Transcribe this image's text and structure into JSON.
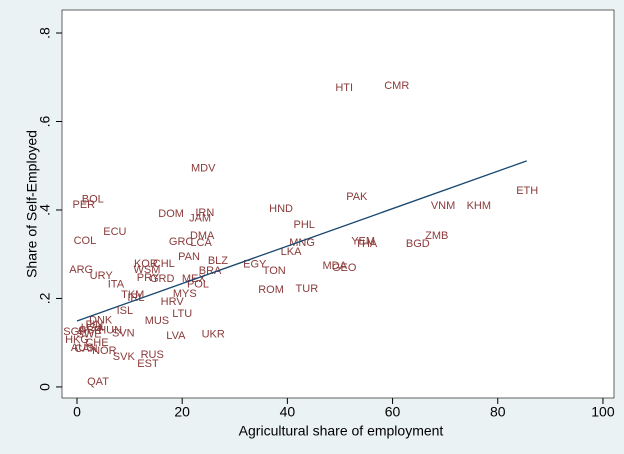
{
  "chart_data": {
    "type": "scatter",
    "xlabel": "Agricultural share of employment",
    "ylabel": "Share of Self-Employed",
    "xlim": [
      -2.85,
      102.1
    ],
    "ylim": [
      -0.025,
      0.852
    ],
    "xticks": [
      0,
      20,
      40,
      60,
      80,
      100
    ],
    "yticks": [
      0,
      {
        "value": 0.2,
        "label": ".2"
      },
      {
        "value": 0.4,
        "label": ".4"
      },
      {
        "value": 0.6,
        "label": ".6"
      },
      {
        "value": 0.8,
        "label": ".8"
      }
    ],
    "grid": false,
    "color": "#8b3a3a",
    "labels": [
      "HTI",
      "CMR",
      "MDV",
      "PAK",
      "ETH",
      "VNM",
      "KHM",
      "BOL",
      "PER",
      "HND",
      "DOM",
      "IRN",
      "JAM",
      "PHL",
      "ECU",
      "ZMB",
      "DMA",
      "COL",
      "GRC",
      "LCA",
      "YEM",
      "THA",
      "BGD",
      "MNG",
      "LKA",
      "PAN",
      "BLZ",
      "EGY",
      "KOR",
      "CHL",
      "WSM",
      "BRA",
      "TON",
      "MDA",
      "GEO",
      "ARG",
      "URY",
      "PRY",
      "GRD",
      "MEX",
      "POL",
      "ITA",
      "ROM",
      "TUR",
      "MYS",
      "TKM",
      "IRL",
      "HRV",
      "LTU",
      "ISL",
      "MUS",
      "LVA",
      "UKR",
      "RUS",
      "EST",
      "SVK",
      "QAT",
      "SGP",
      "GBR",
      "HKG",
      "AUS",
      "NOR",
      "FIN",
      "DNK",
      "SWE",
      "CHE",
      "HUN",
      "SVN",
      "CAN",
      "USA"
    ],
    "x": [
      50.8,
      60.8,
      24.0,
      53.2,
      85.6,
      69.6,
      76.4,
      3.0,
      1.3,
      38.8,
      17.9,
      24.3,
      23.4,
      43.2,
      7.2,
      68.4,
      23.8,
      1.5,
      19.8,
      23.6,
      54.4,
      55.0,
      64.8,
      42.8,
      40.7,
      21.3,
      26.8,
      33.8,
      13.1,
      16.5,
      13.3,
      25.3,
      37.5,
      49.0,
      50.8,
      0.8,
      4.6,
      13.5,
      16.2,
      22.2,
      23.0,
      7.4,
      36.9,
      43.7,
      20.5,
      10.6,
      11.2,
      18.1,
      20.0,
      9.1,
      15.2,
      18.8,
      25.9,
      14.3,
      13.5,
      8.9,
      4.0,
      -0.4,
      2.5,
      0.0,
      1.0,
      5.2,
      3.3,
      4.5,
      2.3,
      3.8,
      6.3,
      8.8,
      1.7,
      2.9
    ],
    "y": [
      0.676,
      0.68,
      0.493,
      0.429,
      0.443,
      0.409,
      0.409,
      0.423,
      0.411,
      0.402,
      0.391,
      0.393,
      0.38,
      0.366,
      0.35,
      0.341,
      0.341,
      0.33,
      0.327,
      0.325,
      0.328,
      0.323,
      0.323,
      0.325,
      0.305,
      0.294,
      0.285,
      0.276,
      0.278,
      0.278,
      0.264,
      0.262,
      0.262,
      0.273,
      0.269,
      0.264,
      0.251,
      0.246,
      0.244,
      0.244,
      0.231,
      0.231,
      0.219,
      0.221,
      0.21,
      0.208,
      0.201,
      0.192,
      0.165,
      0.172,
      0.149,
      0.115,
      0.118,
      0.072,
      0.052,
      0.068,
      0.011,
      0.124,
      0.127,
      0.106,
      0.088,
      0.081,
      0.14,
      0.15,
      0.118,
      0.099,
      0.127,
      0.121,
      0.085,
      0.133
    ],
    "fit": {
      "color": "#1a476f",
      "x": [
        0,
        85.5
      ],
      "y": [
        0.149,
        0.511
      ]
    }
  }
}
